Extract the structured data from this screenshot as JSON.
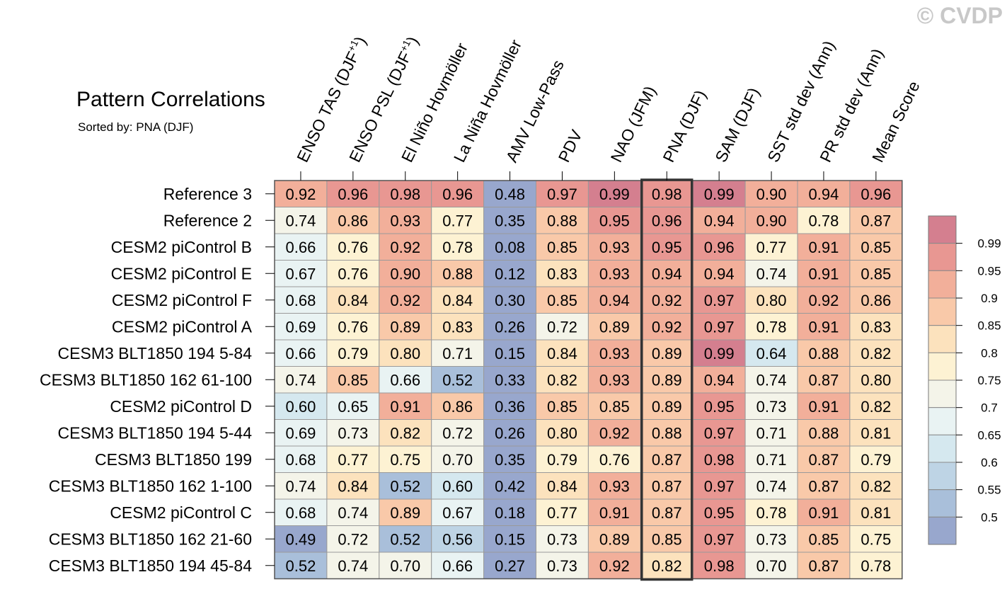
{
  "watermark": "© CVDP",
  "chart_data": {
    "type": "heatmap",
    "title": "Pattern Correlations",
    "subtitle": "Sorted by: PNA (DJF)",
    "highlight_column": "PNA (DJF)",
    "columns": [
      {
        "id": "enso_tas",
        "base": "ENSO TAS (DJF",
        "sup": "+1",
        "tail": ")"
      },
      {
        "id": "enso_psl",
        "base": "ENSO PSL (DJF",
        "sup": "+1",
        "tail": ")"
      },
      {
        "id": "el_nino",
        "base": "El Niño Hovmöller",
        "sup": "",
        "tail": ""
      },
      {
        "id": "la_nina",
        "base": "La Niña Hovmöller",
        "sup": "",
        "tail": ""
      },
      {
        "id": "amv",
        "base": "AMV Low-Pass",
        "sup": "",
        "tail": ""
      },
      {
        "id": "pdv",
        "base": "PDV",
        "sup": "",
        "tail": ""
      },
      {
        "id": "nao",
        "base": "NAO (JFM)",
        "sup": "",
        "tail": ""
      },
      {
        "id": "pna",
        "base": "PNA (DJF)",
        "sup": "",
        "tail": ""
      },
      {
        "id": "sam",
        "base": "SAM (DJF)",
        "sup": "",
        "tail": ""
      },
      {
        "id": "sst_sd",
        "base": "SST std dev (Ann)",
        "sup": "",
        "tail": ""
      },
      {
        "id": "pr_sd",
        "base": "PR std dev (Ann)",
        "sup": "",
        "tail": ""
      },
      {
        "id": "mean",
        "base": "Mean Score",
        "sup": "",
        "tail": ""
      }
    ],
    "rows": [
      {
        "label": "Reference 3",
        "values": [
          "0.92",
          "0.96",
          "0.98",
          "0.96",
          "0.48",
          "0.97",
          "0.99",
          "0.98",
          "0.99",
          "0.90",
          "0.94",
          "0.96"
        ]
      },
      {
        "label": "Reference 2",
        "values": [
          "0.74",
          "0.86",
          "0.93",
          "0.77",
          "0.35",
          "0.88",
          "0.95",
          "0.96",
          "0.94",
          "0.90",
          "0.78",
          "0.87"
        ]
      },
      {
        "label": "CESM2 piControl B",
        "values": [
          "0.66",
          "0.76",
          "0.92",
          "0.78",
          "0.08",
          "0.85",
          "0.93",
          "0.95",
          "0.96",
          "0.77",
          "0.91",
          "0.85"
        ]
      },
      {
        "label": "CESM2 piControl E",
        "values": [
          "0.67",
          "0.76",
          "0.90",
          "0.88",
          "0.12",
          "0.83",
          "0.93",
          "0.94",
          "0.94",
          "0.74",
          "0.91",
          "0.85"
        ]
      },
      {
        "label": "CESM2 piControl F",
        "values": [
          "0.68",
          "0.84",
          "0.92",
          "0.84",
          "0.30",
          "0.85",
          "0.94",
          "0.92",
          "0.97",
          "0.80",
          "0.92",
          "0.86"
        ]
      },
      {
        "label": "CESM2 piControl A",
        "values": [
          "0.69",
          "0.76",
          "0.89",
          "0.83",
          "0.26",
          "0.72",
          "0.89",
          "0.92",
          "0.97",
          "0.78",
          "0.91",
          "0.83"
        ]
      },
      {
        "label": "CESM3 BLT1850 194 5-84",
        "values": [
          "0.66",
          "0.79",
          "0.80",
          "0.71",
          "0.15",
          "0.84",
          "0.93",
          "0.89",
          "0.99",
          "0.64",
          "0.88",
          "0.82"
        ]
      },
      {
        "label": "CESM3 BLT1850 162 61-100",
        "values": [
          "0.74",
          "0.85",
          "0.66",
          "0.52",
          "0.33",
          "0.82",
          "0.93",
          "0.89",
          "0.94",
          "0.74",
          "0.87",
          "0.80"
        ]
      },
      {
        "label": "CESM2 piControl D",
        "values": [
          "0.60",
          "0.65",
          "0.91",
          "0.86",
          "0.36",
          "0.85",
          "0.85",
          "0.89",
          "0.95",
          "0.73",
          "0.91",
          "0.82"
        ]
      },
      {
        "label": "CESM3 BLT1850 194 5-44",
        "values": [
          "0.69",
          "0.73",
          "0.82",
          "0.72",
          "0.26",
          "0.80",
          "0.92",
          "0.88",
          "0.97",
          "0.71",
          "0.88",
          "0.81"
        ]
      },
      {
        "label": "CESM3 BLT1850 199",
        "values": [
          "0.68",
          "0.77",
          "0.75",
          "0.70",
          "0.35",
          "0.79",
          "0.76",
          "0.87",
          "0.98",
          "0.71",
          "0.87",
          "0.79"
        ]
      },
      {
        "label": "CESM3 BLT1850 162 1-100",
        "values": [
          "0.74",
          "0.84",
          "0.52",
          "0.60",
          "0.42",
          "0.84",
          "0.93",
          "0.87",
          "0.97",
          "0.74",
          "0.87",
          "0.82"
        ]
      },
      {
        "label": "CESM2 piControl C",
        "values": [
          "0.68",
          "0.74",
          "0.89",
          "0.67",
          "0.18",
          "0.77",
          "0.91",
          "0.87",
          "0.95",
          "0.78",
          "0.91",
          "0.81"
        ]
      },
      {
        "label": "CESM3 BLT1850 162 21-60",
        "values": [
          "0.49",
          "0.72",
          "0.52",
          "0.56",
          "0.15",
          "0.73",
          "0.89",
          "0.85",
          "0.97",
          "0.73",
          "0.85",
          "0.75"
        ]
      },
      {
        "label": "CESM3 BLT1850 194 45-84",
        "values": [
          "0.52",
          "0.74",
          "0.70",
          "0.66",
          "0.27",
          "0.73",
          "0.92",
          "0.82",
          "0.98",
          "0.70",
          "0.87",
          "0.78"
        ]
      }
    ],
    "colorbar": {
      "levels": [
        0.5,
        0.55,
        0.6,
        0.65,
        0.7,
        0.75,
        0.8,
        0.85,
        0.9,
        0.95,
        0.99
      ],
      "tick_labels": [
        "0.5",
        "0.55",
        "0.6",
        "0.65",
        "0.7",
        "0.75",
        "0.8",
        "0.85",
        "0.9",
        "0.95",
        "0.99"
      ],
      "colors": [
        "#98a7cd",
        "#a9bfda",
        "#bed4e5",
        "#d5e8ef",
        "#e9f3f3",
        "#f4f4e9",
        "#fdf2d3",
        "#fce2bd",
        "#f9c9a9",
        "#f2af9a",
        "#e89792",
        "#d47f8f"
      ]
    }
  }
}
